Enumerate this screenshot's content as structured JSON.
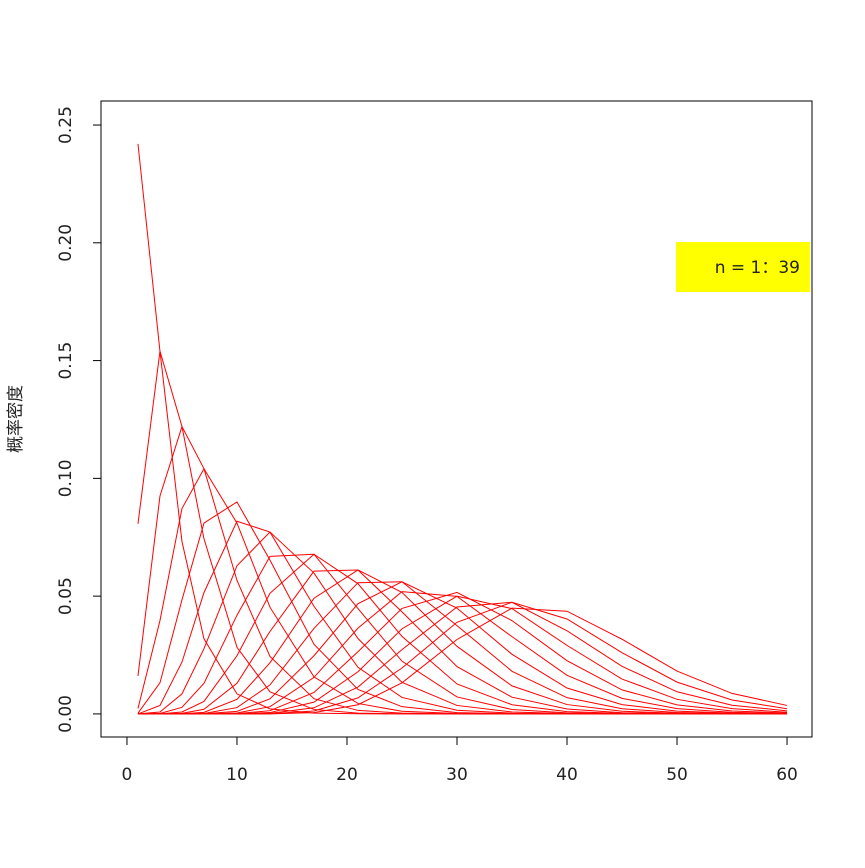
{
  "chart_data": {
    "type": "line",
    "ylabel": "概率密度",
    "annotation": "n = 1：39",
    "annotation_color": "#ffff00",
    "color": "#ff0000",
    "x": [
      1,
      3,
      5,
      7,
      10,
      13,
      17,
      21,
      25,
      30,
      35,
      40,
      45,
      50,
      55,
      60
    ],
    "series": [
      {
        "values": [
          0.242,
          0.154,
          0.0732,
          0.0319,
          0.0085,
          0.00216,
          0.00033,
          5e-05,
          0,
          0,
          0,
          0,
          0,
          0,
          0,
          0
        ]
      },
      {
        "values": [
          0.0807,
          0.154,
          0.122,
          0.0744,
          0.0283,
          0.00937,
          0.0019,
          0.00035,
          6e-05,
          0,
          0,
          0,
          0,
          0,
          0,
          0
        ]
      },
      {
        "values": [
          0.0161,
          0.0925,
          0.122,
          0.1041,
          0.0567,
          0.0244,
          0.00645,
          0.00148,
          0.00031,
          4e-05,
          0,
          0,
          0,
          0,
          0,
          0
        ]
      },
      {
        "values": [
          0.0023,
          0.0396,
          0.0872,
          0.1041,
          0.081,
          0.0453,
          0.0157,
          0.00444,
          0.00111,
          0.00017,
          2e-05,
          0,
          0,
          0,
          0,
          0
        ]
      },
      {
        "values": [
          0.0003,
          0.0132,
          0.0484,
          0.081,
          0.09,
          0.0653,
          0.0296,
          0.0104,
          0.00307,
          0.00057,
          9e-05,
          1e-05,
          0,
          0,
          0,
          0
        ]
      },
      {
        "values": [
          0,
          0.0036,
          0.022,
          0.0515,
          0.0818,
          0.0772,
          0.0457,
          0.0198,
          0.007,
          0.00156,
          0.0003,
          5e-05,
          0,
          0,
          0,
          0
        ]
      },
      {
        "values": [
          0,
          0.00083,
          0.0085,
          0.0277,
          0.0629,
          0.0772,
          0.0598,
          0.032,
          0.0134,
          0.0036,
          0.00081,
          0.00016,
          3e-05,
          0,
          0,
          0
        ]
      },
      {
        "values": [
          0,
          0.00017,
          0.0028,
          0.013,
          0.0419,
          0.0669,
          0.0678,
          0.0447,
          0.0224,
          0.0072,
          0.00188,
          0.00042,
          8e-05,
          2e-05,
          0,
          0
        ]
      },
      {
        "values": [
          0,
          3e-05,
          0.00083,
          0.0053,
          0.0247,
          0.0512,
          0.0678,
          0.0553,
          0.0329,
          0.0127,
          0.0039,
          0.00099,
          0.00022,
          4e-05,
          0,
          0
        ]
      },
      {
        "values": [
          0,
          0,
          0.00022,
          0.00197,
          0.013,
          0.035,
          0.0606,
          0.0611,
          0.0433,
          0.0201,
          0.0071,
          0.00208,
          0.00052,
          0.00012,
          2e-05,
          0
        ]
      },
      {
        "values": [
          0,
          0,
          5e-05,
          0.00065,
          0.0062,
          0.0217,
          0.0491,
          0.0611,
          0.0516,
          0.0287,
          0.0119,
          0.00397,
          0.00112,
          0.00028,
          6e-05,
          1e-05
        ]
      },
      {
        "values": [
          0,
          0,
          1e-05,
          0.0002,
          0.0027,
          0.0123,
          0.0363,
          0.0557,
          0.0561,
          0.0375,
          0.0181,
          0.0069,
          0.0022,
          0.0006,
          0.00015,
          3e-05
        ]
      },
      {
        "values": [
          0,
          0,
          0,
          6e-05,
          0.00108,
          0.0064,
          0.0247,
          0.0468,
          0.0561,
          0.0449,
          0.0253,
          0.011,
          0.00395,
          0.00121,
          0.00033,
          8e-05
        ]
      },
      {
        "values": [
          0,
          0,
          0,
          1e-05,
          0.0004,
          0.00307,
          0.0155,
          0.0364,
          0.0519,
          0.0499,
          0.0328,
          0.0164,
          0.0066,
          0.00224,
          0.00067,
          0.00018
        ]
      },
      {
        "values": [
          0,
          0,
          0,
          0,
          0.00014,
          0.00137,
          0.0091,
          0.0264,
          0.0448,
          0.0516,
          0.0396,
          0.0226,
          0.0102,
          0.00386,
          0.00126,
          0.00037
        ]
      },
      {
        "values": [
          0,
          0,
          0,
          0,
          4e-05,
          0.00058,
          0.005,
          0.0179,
          0.0361,
          0.05,
          0.0447,
          0.0291,
          0.0148,
          0.0062,
          0.00224,
          0.00071
        ]
      },
      {
        "values": [
          0,
          0,
          0,
          0,
          1e-05,
          0.00023,
          0.0026,
          0.0114,
          0.0273,
          0.0454,
          0.0474,
          0.0353,
          0.0202,
          0.0094,
          0.0037,
          0.00129
        ]
      },
      {
        "values": [
          0,
          0,
          0,
          0,
          0,
          8e-05,
          0.00125,
          0.0068,
          0.0195,
          0.0389,
          0.0474,
          0.0403,
          0.026,
          0.0135,
          0.0059,
          0.0022
        ]
      },
      {
        "values": [
          0,
          0,
          0,
          0,
          0,
          3e-05,
          0.00057,
          0.0039,
          0.0132,
          0.0316,
          0.0449,
          0.0436,
          0.0317,
          0.0182,
          0.0087,
          0.0036
        ]
      }
    ],
    "xlim": [
      -2.36,
      62.27
    ],
    "ylim": [
      -0.0098,
      0.2602
    ],
    "xticks": [
      0,
      10,
      20,
      30,
      40,
      50,
      60
    ],
    "yticks": [
      {
        "value": 0,
        "label": "0.00"
      },
      {
        "value": 0.05,
        "label": "0.05"
      },
      {
        "value": 0.1,
        "label": "0.10"
      },
      {
        "value": 0.15,
        "label": "0.15"
      },
      {
        "value": 0.2,
        "label": "0.20"
      },
      {
        "value": 0.25,
        "label": "0.25"
      }
    ]
  }
}
